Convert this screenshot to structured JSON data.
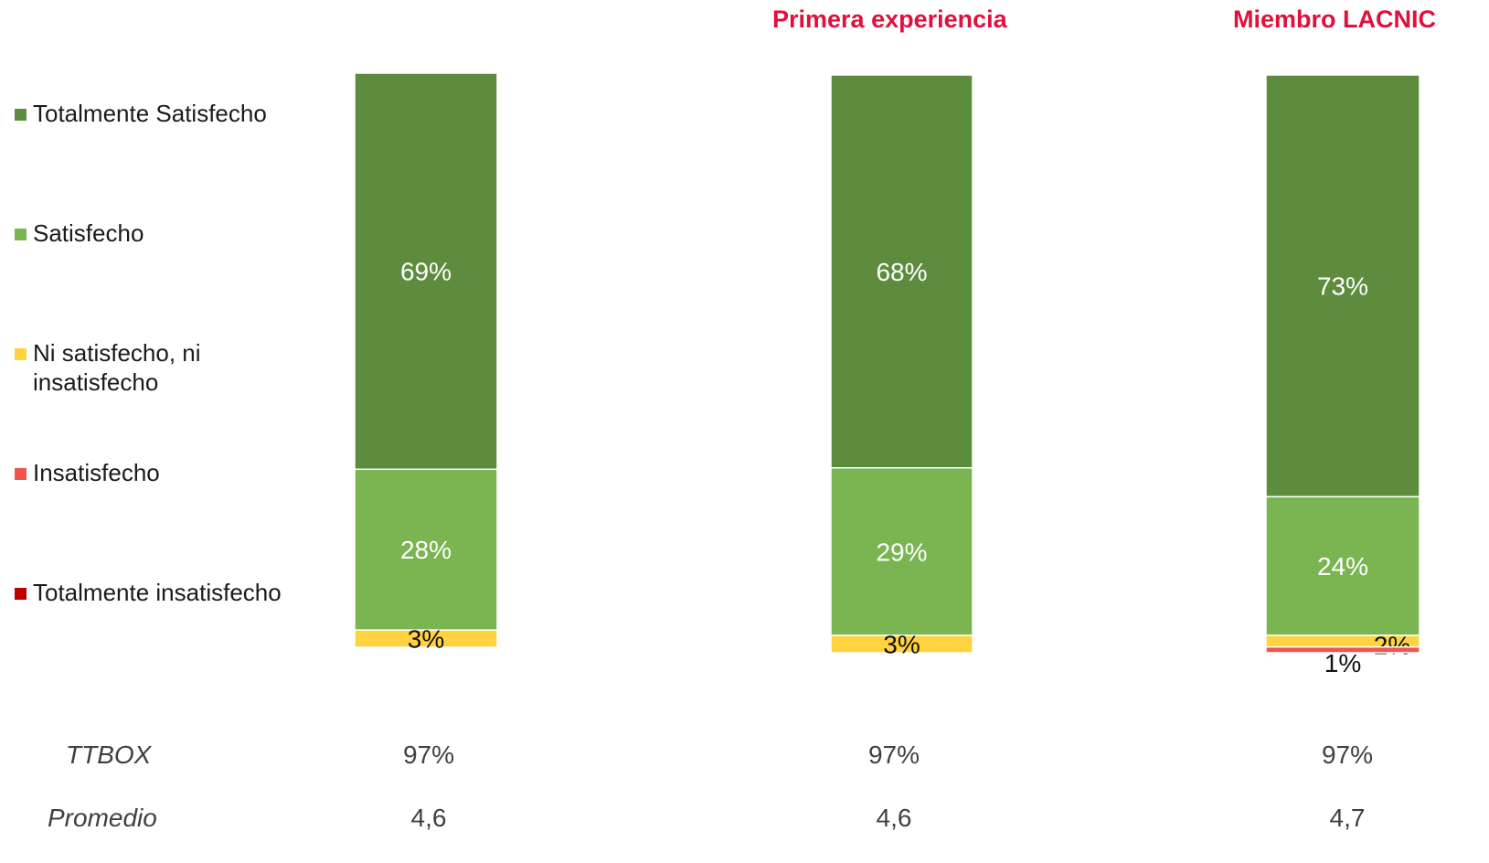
{
  "chart_data": {
    "type": "bar",
    "stacked": true,
    "categories": [
      "",
      "Primera experiencia",
      "Miembro LACNIC"
    ],
    "series": [
      {
        "name": "Totalmente Satisfecho",
        "color": "#5e8c3e",
        "values": [
          69,
          68,
          73
        ],
        "labels": [
          "69%",
          "68%",
          "73%"
        ]
      },
      {
        "name": "Satisfecho",
        "color": "#7ab552",
        "values": [
          28,
          29,
          24
        ],
        "labels": [
          "28%",
          "29%",
          "24%"
        ]
      },
      {
        "name": "Ni satisfecho, ni insatisfecho",
        "color": "#ffd23f",
        "values": [
          3,
          3,
          2
        ],
        "labels": [
          "3%",
          "3%",
          "2%"
        ]
      },
      {
        "name": "Insatisfecho",
        "color": "#f0544f",
        "values": [
          0,
          0,
          1
        ],
        "labels": [
          "",
          "",
          "1%"
        ]
      },
      {
        "name": "Totalmente insatisfecho",
        "color": "#c00000",
        "values": [
          0,
          0,
          0
        ],
        "labels": [
          "",
          "",
          ""
        ]
      }
    ],
    "legend": "left",
    "grid": false
  },
  "legend_items": [
    {
      "label": "Totalmente Satisfecho",
      "color": "#5e8c3e"
    },
    {
      "label": "Satisfecho",
      "color": "#7ab552"
    },
    {
      "label": "Ni satisfecho, ni insatisfecho",
      "color": "#ffd23f"
    },
    {
      "label": "Insatisfecho",
      "color": "#f0544f"
    },
    {
      "label": "Totalmente insatisfecho",
      "color": "#c00000"
    }
  ],
  "column_titles": [
    "Primera experiencia",
    "Miembro LACNIC"
  ],
  "summary": {
    "ttbox": {
      "label": "TTBOX",
      "values": [
        "97%",
        "97%",
        "97%"
      ]
    },
    "promedio": {
      "label": "Promedio",
      "values": [
        "4,6",
        "4,6",
        "4,7"
      ]
    }
  },
  "colors": {
    "title": "#e0103c",
    "text": "#404040"
  }
}
